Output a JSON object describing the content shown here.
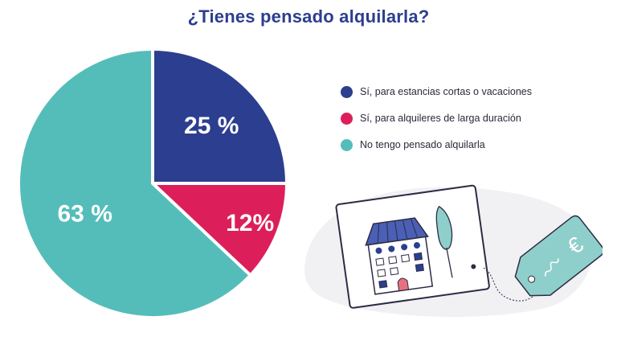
{
  "title": "¿Tienes pensado alquilarla?",
  "chart_data": {
    "type": "pie",
    "title": "¿Tienes pensado alquilarla?",
    "slices": [
      {
        "name": "Sí, para estancias cortas o vacaciones",
        "value": 25,
        "label": "25 %",
        "color": "#2c3e8f"
      },
      {
        "name": "Sí, para alquileres de larga duración",
        "value": 12,
        "label": "12%",
        "color": "#dc1f5a"
      },
      {
        "name": "No tengo pensado alquilarla",
        "value": 63,
        "label": "63 %",
        "color": "#55bdb9"
      }
    ],
    "legend_position": "right"
  },
  "illustration": {
    "name": "house-card-with-euro-tag",
    "tag_symbol": "€"
  }
}
